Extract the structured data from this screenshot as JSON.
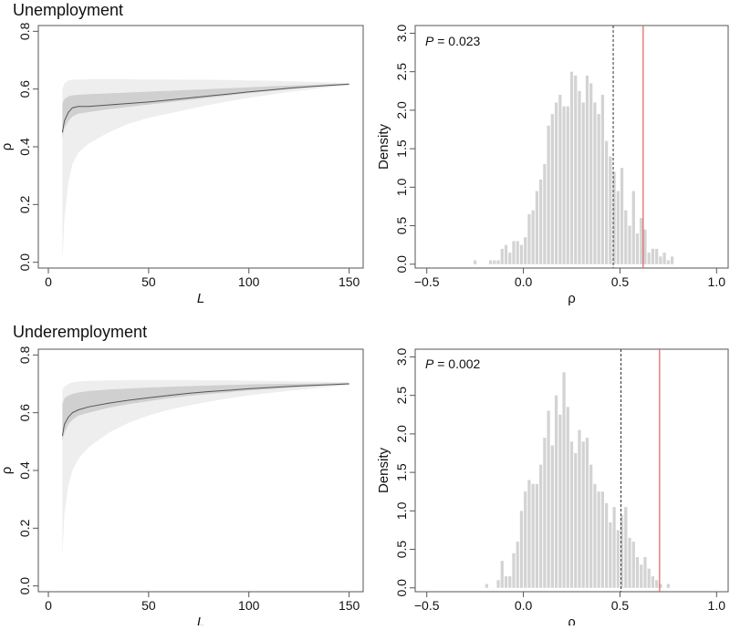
{
  "panels": [
    {
      "title": "Unemployment",
      "p_value_label": "P",
      "p_value_text": " = 0.023",
      "colors": {
        "outer_band": "#eeeeee",
        "inner_band": "#d0d0d0",
        "median_line": "#555555",
        "hist_bar": "#d3d3d3",
        "observed_line": "#e06060",
        "null_line": "#333333"
      }
    },
    {
      "title": "Underemployment",
      "p_value_label": "P",
      "p_value_text": " = 0.002",
      "colors": {
        "outer_band": "#eeeeee",
        "inner_band": "#d0d0d0",
        "median_line": "#555555",
        "hist_bar": "#d3d3d3",
        "observed_line": "#e06060",
        "null_line": "#333333"
      }
    }
  ],
  "chart_data": [
    {
      "type": "area",
      "panel": "Unemployment",
      "xlabel": "L",
      "ylabel": "ρ",
      "xticks": [
        "0",
        "50",
        "100",
        "150"
      ],
      "yticks": [
        "0.0",
        "0.2",
        "0.4",
        "0.6",
        "0.8"
      ],
      "xlim": [
        -5,
        157
      ],
      "ylim": [
        -0.02,
        0.82
      ],
      "x": [
        7,
        8,
        10,
        12,
        15,
        20,
        30,
        40,
        50,
        60,
        70,
        80,
        90,
        100,
        110,
        120,
        130,
        140,
        150
      ],
      "median": [
        0.45,
        0.49,
        0.52,
        0.535,
        0.54,
        0.54,
        0.545,
        0.55,
        0.555,
        0.562,
        0.569,
        0.576,
        0.583,
        0.59,
        0.596,
        0.603,
        0.608,
        0.613,
        0.617
      ],
      "inner_lower": [
        0.43,
        0.465,
        0.49,
        0.505,
        0.515,
        0.52,
        0.53,
        0.538,
        0.546,
        0.554,
        0.562,
        0.57,
        0.578,
        0.586,
        0.593,
        0.6,
        0.606,
        0.611,
        0.615
      ],
      "inner_upper": [
        0.55,
        0.565,
        0.575,
        0.578,
        0.58,
        0.582,
        0.585,
        0.588,
        0.591,
        0.594,
        0.597,
        0.6,
        0.603,
        0.606,
        0.609,
        0.612,
        0.614,
        0.617,
        0.619
      ],
      "outer_lower": [
        0.0,
        0.15,
        0.28,
        0.34,
        0.38,
        0.41,
        0.45,
        0.48,
        0.5,
        0.515,
        0.53,
        0.545,
        0.558,
        0.57,
        0.58,
        0.59,
        0.598,
        0.606,
        0.613
      ],
      "outer_upper": [
        0.6,
        0.62,
        0.63,
        0.632,
        0.633,
        0.634,
        0.634,
        0.634,
        0.633,
        0.633,
        0.632,
        0.632,
        0.631,
        0.63,
        0.629,
        0.627,
        0.625,
        0.623,
        0.621
      ]
    },
    {
      "type": "bar",
      "panel": "Unemployment",
      "xlabel": "ρ",
      "ylabel": "Density",
      "xticks": [
        "−0.5",
        "0.0",
        "0.5",
        "1.0"
      ],
      "yticks": [
        "0.0",
        "0.5",
        "1.0",
        "1.5",
        "2.0",
        "2.5",
        "3.0"
      ],
      "xlim": [
        -0.56,
        1.06
      ],
      "ylim": [
        -0.05,
        3.1
      ],
      "bin_width": 0.02,
      "bins": [
        {
          "x": -0.26,
          "density": 0.05
        },
        {
          "x": -0.18,
          "density": 0.05
        },
        {
          "x": -0.16,
          "density": 0.05
        },
        {
          "x": -0.14,
          "density": 0.05
        },
        {
          "x": -0.12,
          "density": 0.2
        },
        {
          "x": -0.1,
          "density": 0.25
        },
        {
          "x": -0.08,
          "density": 0.15
        },
        {
          "x": -0.06,
          "density": 0.3
        },
        {
          "x": -0.04,
          "density": 0.3
        },
        {
          "x": -0.02,
          "density": 0.25
        },
        {
          "x": 0.0,
          "density": 0.35
        },
        {
          "x": 0.02,
          "density": 0.65
        },
        {
          "x": 0.04,
          "density": 0.7
        },
        {
          "x": 0.06,
          "density": 0.95
        },
        {
          "x": 0.08,
          "density": 1.1
        },
        {
          "x": 0.1,
          "density": 1.3
        },
        {
          "x": 0.12,
          "density": 1.8
        },
        {
          "x": 0.14,
          "density": 1.95
        },
        {
          "x": 0.16,
          "density": 2.1
        },
        {
          "x": 0.18,
          "density": 2.2
        },
        {
          "x": 0.2,
          "density": 2.05
        },
        {
          "x": 0.22,
          "density": 2.05
        },
        {
          "x": 0.24,
          "density": 2.5
        },
        {
          "x": 0.26,
          "density": 2.45
        },
        {
          "x": 0.28,
          "density": 2.25
        },
        {
          "x": 0.3,
          "density": 2.1
        },
        {
          "x": 0.32,
          "density": 2.45
        },
        {
          "x": 0.34,
          "density": 2.35
        },
        {
          "x": 0.36,
          "density": 2.1
        },
        {
          "x": 0.38,
          "density": 1.95
        },
        {
          "x": 0.4,
          "density": 2.2
        },
        {
          "x": 0.42,
          "density": 1.6
        },
        {
          "x": 0.44,
          "density": 1.4
        },
        {
          "x": 0.46,
          "density": 1.2
        },
        {
          "x": 0.48,
          "density": 0.95
        },
        {
          "x": 0.5,
          "density": 1.25
        },
        {
          "x": 0.52,
          "density": 0.7
        },
        {
          "x": 0.54,
          "density": 0.5
        },
        {
          "x": 0.56,
          "density": 0.95
        },
        {
          "x": 0.58,
          "density": 0.4
        },
        {
          "x": 0.6,
          "density": 0.6
        },
        {
          "x": 0.62,
          "density": 0.45
        },
        {
          "x": 0.64,
          "density": 0.15
        },
        {
          "x": 0.66,
          "density": 0.2
        },
        {
          "x": 0.68,
          "density": 0.2
        },
        {
          "x": 0.7,
          "density": 0.1
        },
        {
          "x": 0.72,
          "density": 0.15
        },
        {
          "x": 0.74,
          "density": 0.05
        },
        {
          "x": 0.76,
          "density": 0.1
        }
      ],
      "null_line_x": 0.465,
      "observed_line_x": 0.62
    },
    {
      "type": "area",
      "panel": "Underemployment",
      "xlabel": "L",
      "ylabel": "ρ",
      "xticks": [
        "0",
        "50",
        "100",
        "150"
      ],
      "yticks": [
        "0.0",
        "0.2",
        "0.4",
        "0.6",
        "0.8"
      ],
      "xlim": [
        -5,
        157
      ],
      "ylim": [
        -0.02,
        0.82
      ],
      "x": [
        7,
        8,
        10,
        12,
        15,
        20,
        30,
        40,
        50,
        60,
        70,
        80,
        90,
        100,
        110,
        120,
        130,
        140,
        150
      ],
      "median": [
        0.52,
        0.56,
        0.585,
        0.6,
        0.61,
        0.62,
        0.633,
        0.643,
        0.652,
        0.66,
        0.667,
        0.673,
        0.678,
        0.683,
        0.687,
        0.691,
        0.694,
        0.697,
        0.7
      ],
      "inner_lower": [
        0.5,
        0.53,
        0.56,
        0.575,
        0.59,
        0.6,
        0.617,
        0.63,
        0.64,
        0.65,
        0.658,
        0.665,
        0.671,
        0.677,
        0.682,
        0.687,
        0.691,
        0.695,
        0.698
      ],
      "inner_upper": [
        0.63,
        0.65,
        0.66,
        0.665,
        0.67,
        0.675,
        0.68,
        0.684,
        0.687,
        0.69,
        0.692,
        0.694,
        0.696,
        0.698,
        0.699,
        0.7,
        0.701,
        0.702,
        0.703
      ],
      "outer_lower": [
        0.1,
        0.25,
        0.35,
        0.4,
        0.44,
        0.48,
        0.53,
        0.565,
        0.59,
        0.61,
        0.625,
        0.638,
        0.65,
        0.66,
        0.668,
        0.676,
        0.683,
        0.689,
        0.695
      ],
      "outer_upper": [
        0.68,
        0.69,
        0.7,
        0.705,
        0.708,
        0.71,
        0.712,
        0.713,
        0.713,
        0.713,
        0.713,
        0.712,
        0.712,
        0.711,
        0.71,
        0.709,
        0.708,
        0.707,
        0.706
      ]
    },
    {
      "type": "bar",
      "panel": "Underemployment",
      "xlabel": "ρ",
      "ylabel": "Density",
      "xticks": [
        "−0.5",
        "0.0",
        "0.5",
        "1.0"
      ],
      "yticks": [
        "0.0",
        "0.5",
        "1.0",
        "1.5",
        "2.0",
        "2.5",
        "3.0"
      ],
      "xlim": [
        -0.56,
        1.06
      ],
      "ylim": [
        -0.05,
        3.1
      ],
      "bin_width": 0.02,
      "bins": [
        {
          "x": -0.2,
          "density": 0.05
        },
        {
          "x": -0.14,
          "density": 0.1
        },
        {
          "x": -0.12,
          "density": 0.35
        },
        {
          "x": -0.1,
          "density": 0.15
        },
        {
          "x": -0.08,
          "density": 0.15
        },
        {
          "x": -0.06,
          "density": 0.45
        },
        {
          "x": -0.04,
          "density": 0.6
        },
        {
          "x": -0.02,
          "density": 1.0
        },
        {
          "x": 0.0,
          "density": 1.25
        },
        {
          "x": 0.02,
          "density": 1.4
        },
        {
          "x": 0.04,
          "density": 1.35
        },
        {
          "x": 0.06,
          "density": 1.35
        },
        {
          "x": 0.08,
          "density": 1.6
        },
        {
          "x": 0.1,
          "density": 1.95
        },
        {
          "x": 0.12,
          "density": 2.3
        },
        {
          "x": 0.14,
          "density": 1.85
        },
        {
          "x": 0.16,
          "density": 2.5
        },
        {
          "x": 0.18,
          "density": 2.25
        },
        {
          "x": 0.2,
          "density": 2.8
        },
        {
          "x": 0.22,
          "density": 2.35
        },
        {
          "x": 0.24,
          "density": 1.9
        },
        {
          "x": 0.26,
          "density": 1.75
        },
        {
          "x": 0.28,
          "density": 2.05
        },
        {
          "x": 0.3,
          "density": 1.9
        },
        {
          "x": 0.32,
          "density": 1.95
        },
        {
          "x": 0.34,
          "density": 1.6
        },
        {
          "x": 0.36,
          "density": 1.35
        },
        {
          "x": 0.38,
          "density": 1.25
        },
        {
          "x": 0.4,
          "density": 1.25
        },
        {
          "x": 0.42,
          "density": 1.1
        },
        {
          "x": 0.44,
          "density": 0.85
        },
        {
          "x": 0.46,
          "density": 1.05
        },
        {
          "x": 0.48,
          "density": 0.75
        },
        {
          "x": 0.5,
          "density": 0.95
        },
        {
          "x": 0.52,
          "density": 1.05
        },
        {
          "x": 0.54,
          "density": 0.65
        },
        {
          "x": 0.56,
          "density": 0.6
        },
        {
          "x": 0.58,
          "density": 0.4
        },
        {
          "x": 0.6,
          "density": 0.3
        },
        {
          "x": 0.62,
          "density": 0.4
        },
        {
          "x": 0.64,
          "density": 0.25
        },
        {
          "x": 0.66,
          "density": 0.15
        },
        {
          "x": 0.68,
          "density": 0.1
        },
        {
          "x": 0.7,
          "density": 0.05
        },
        {
          "x": 0.74,
          "density": 0.05
        }
      ],
      "null_line_x": 0.505,
      "observed_line_x": 0.705
    }
  ]
}
